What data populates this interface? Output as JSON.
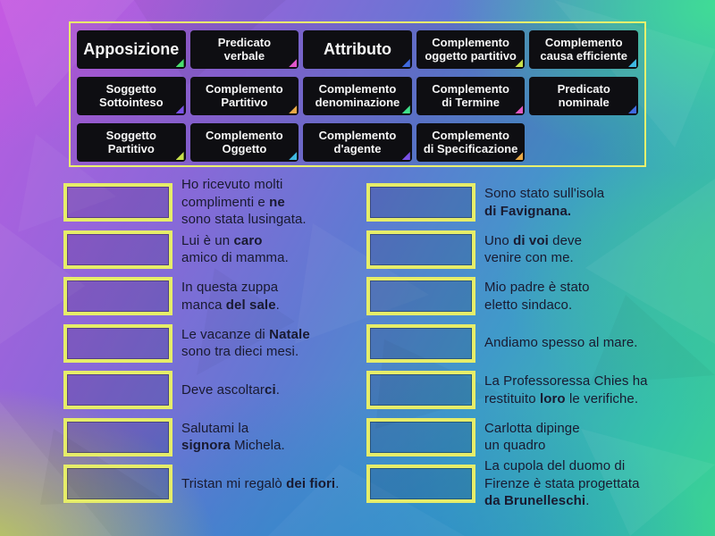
{
  "colors": {
    "panel_border": "#eaf06d",
    "slot_border": "#e6ed69",
    "tile_background": "#0e0e12",
    "tile_text": "#f6f6f6",
    "sentence_text": "#191a30",
    "bg_top_left": "#c75ae6",
    "bg_top_right": "#40e092",
    "bg_bottom_left": "#bace46",
    "bg_bottom_center": "#2b86c9",
    "bg_bottom_right": "#2ba3cc"
  },
  "board": {
    "tiles": [
      {
        "label": "Apposizione",
        "size": "large",
        "corner": "#4ade6e"
      },
      {
        "label": "Predicato\nverbale",
        "size": "small",
        "corner": "#e056c9"
      },
      {
        "label": "Attributo",
        "size": "large",
        "corner": "#3f6ae0"
      },
      {
        "label": "Complemento\noggetto partitivo",
        "size": "small",
        "corner": "#c8e04a"
      },
      {
        "label": "Complemento\ncausa efficiente",
        "size": "small",
        "corner": "#3fb8e0"
      },
      {
        "label": "Soggetto\nSottointeso",
        "size": "small",
        "corner": "#7b52e8"
      },
      {
        "label": "Complemento\nPartitivo",
        "size": "small",
        "corner": "#e8a845"
      },
      {
        "label": "Complemento\ndenominazione",
        "size": "small",
        "corner": "#3fe08a"
      },
      {
        "label": "Complemento\ndi Termine",
        "size": "small",
        "corner": "#e058c0"
      },
      {
        "label": "Predicato\nnominale",
        "size": "small",
        "corner": "#3f6ae0"
      },
      {
        "label": "Soggetto\nPartitivo",
        "size": "small",
        "corner": "#c8e04a"
      },
      {
        "label": "Complemento\nOggetto",
        "size": "small",
        "corner": "#3fb8e0"
      },
      {
        "label": "Complemento\nd'agente",
        "size": "small",
        "corner": "#7b52e8"
      },
      {
        "label": "Complemento\ndi Specificazione",
        "size": "small",
        "corner": "#e8a845"
      }
    ]
  },
  "matches": {
    "left": [
      {
        "lines": [
          [
            {
              "t": "Ho ricevuto molti"
            }
          ],
          [
            {
              "t": "complimenti e "
            },
            {
              "t": "ne",
              "b": true
            }
          ],
          [
            {
              "t": "sono stata lusingata."
            }
          ]
        ]
      },
      {
        "lines": [
          [
            {
              "t": "Lui è un "
            },
            {
              "t": "caro",
              "b": true
            }
          ],
          [
            {
              "t": "amico di mamma."
            }
          ]
        ]
      },
      {
        "lines": [
          [
            {
              "t": "In questa zuppa"
            }
          ],
          [
            {
              "t": "manca "
            },
            {
              "t": "del sale",
              "b": true
            },
            {
              "t": "."
            }
          ]
        ]
      },
      {
        "lines": [
          [
            {
              "t": "Le vacanze di "
            },
            {
              "t": "Natale",
              "b": true
            }
          ],
          [
            {
              "t": "sono tra dieci mesi."
            }
          ]
        ]
      },
      {
        "lines": [
          [
            {
              "t": "Deve ascoltar"
            },
            {
              "t": "ci",
              "b": true
            },
            {
              "t": "."
            }
          ]
        ]
      },
      {
        "lines": [
          [
            {
              "t": "Salutami la"
            }
          ],
          [
            {
              "t": "signora",
              "b": true
            },
            {
              "t": " Michela."
            }
          ]
        ]
      },
      {
        "lines": [
          [
            {
              "t": "Tristan mi regalò "
            },
            {
              "t": "dei fiori",
              "b": true
            },
            {
              "t": "."
            }
          ]
        ]
      }
    ],
    "right": [
      {
        "lines": [
          [
            {
              "t": "Sono stato sull'isola"
            }
          ],
          [
            {
              "t": "di Favignana.",
              "b": true
            }
          ]
        ]
      },
      {
        "lines": [
          [
            {
              "t": "Uno "
            },
            {
              "t": "di voi",
              "b": true
            },
            {
              "t": " deve"
            }
          ],
          [
            {
              "t": "venire con me."
            }
          ]
        ]
      },
      {
        "lines": [
          [
            {
              "t": "Mio padre è stato"
            }
          ],
          [
            {
              "t": "eletto sindaco."
            }
          ]
        ]
      },
      {
        "lines": [
          [
            {
              "t": "Andiamo spesso al mare."
            }
          ]
        ]
      },
      {
        "lines": [
          [
            {
              "t": "La Professoressa Chies ha"
            }
          ],
          [
            {
              "t": "restituito "
            },
            {
              "t": "loro",
              "b": true
            },
            {
              "t": " le verifiche."
            }
          ]
        ]
      },
      {
        "lines": [
          [
            {
              "t": "Carlotta dipinge"
            }
          ],
          [
            {
              "t": "un quadro"
            }
          ]
        ]
      },
      {
        "lines": [
          [
            {
              "t": "La cupola del duomo di"
            }
          ],
          [
            {
              "t": "Firenze è stata progettata"
            }
          ],
          [
            {
              "t": "da Brunelleschi",
              "b": true
            },
            {
              "t": "."
            }
          ]
        ]
      }
    ]
  }
}
